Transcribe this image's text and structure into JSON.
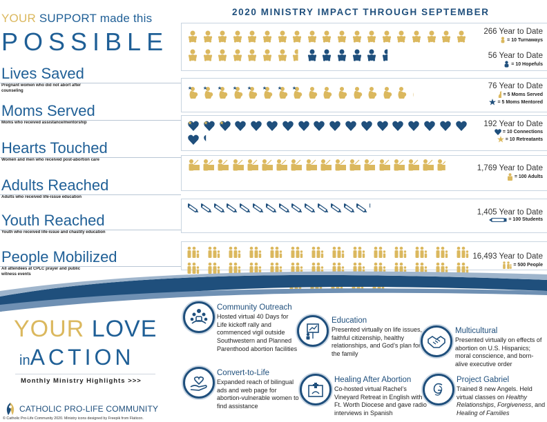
{
  "header": {
    "line1_your": "YOUR",
    "line1_support": "SUPPORT",
    "line1_rest": "made this",
    "line2": "POSSIBLE",
    "chart_title": "2020 MINISTRY IMPACT THROUGH SEPTEMBER"
  },
  "categories": [
    {
      "title": "Lives Saved",
      "desc": "Pregnant women who did not abort after counseling"
    },
    {
      "title": "Moms Served",
      "desc": "Moms who received assistance/mentorship"
    },
    {
      "title": "Hearts Touched",
      "desc": "Women and men who received post-abortion care"
    },
    {
      "title": "Adults Reached",
      "desc": "Adults who received life-issue education"
    },
    {
      "title": "Youth Reached",
      "desc": "Youth who received life-issue and chastity education"
    },
    {
      "title": "People Mobilized",
      "desc": "All attendees at CPLC prayer and public witness events"
    }
  ],
  "stats": {
    "lives_turnaways": {
      "big": "266 Year to Date",
      "legend": "= 10 Turnaways",
      "count": 266,
      "unit": 10,
      "color": "#dbb85e"
    },
    "lives_hopefuls": {
      "big": "56 Year to Date",
      "legend": "= 10 Hopefuls",
      "count": 56,
      "unit": 10,
      "color": "#1f4f7c"
    },
    "moms": {
      "big": "76 Year to Date",
      "legend1": "= 5 Moms Served",
      "legend2": "= 5 Moms Mentored",
      "count": 76,
      "unit": 5
    },
    "hearts": {
      "big": "192 Year to Date",
      "legend1": "= 10 Connections",
      "legend2": "= 10 Retreatants",
      "count": 192,
      "unit": 10
    },
    "adults": {
      "big": "1,769 Year to Date",
      "legend": "= 100 Adults",
      "count": 1769,
      "unit": 100
    },
    "youth": {
      "big": "1,405 Year to Date",
      "legend": "= 100 Students",
      "count": 1405,
      "unit": 100
    },
    "people": {
      "big": "16,493 Year to Date",
      "legend": "= 500 People",
      "count": 16493,
      "unit": 500
    }
  },
  "colors": {
    "gold": "#dbb85e",
    "navy": "#1f4f7c",
    "blue": "#1f5f96"
  },
  "bottom": {
    "your": "YOUR",
    "love": "LOVE",
    "in": "in",
    "action": "ACTION",
    "monthly": "Monthly Ministry Highlights >>>",
    "org": "CATHOLIC PRO-LIFE COMMUNITY",
    "copyright": "© Catholic Pro-Life Community 2020. Ministry icons designed by Freepik from Flaticon."
  },
  "highlights": {
    "outreach": {
      "title": "Community Outreach",
      "icon": "people-gathering-icon",
      "body": "Hosted virtual 40 Days for Life kickoff rally and commenced vigil outside Southwestern and Planned Parenthood abortion facilities"
    },
    "education": {
      "title": "Education",
      "icon": "presentation-icon",
      "body": "Presented virtually on life issues, faithful citizenship, healthy relationships, and God’s plan for the family"
    },
    "multicultural": {
      "title": "Multicultural",
      "icon": "handshake-icon",
      "body": "Presented virtually on effects of abortion on U.S. Hispanics; moral conscience, and born-alive executive order"
    },
    "convert": {
      "title": "Convert-to-Life",
      "icon": "heart-hand-icon",
      "body": "Expanded reach of bilingual ads and web page for abortion-vulnerable women to find assistance"
    },
    "healing": {
      "title": "Healing After Abortion",
      "icon": "healing-icon",
      "body": "Co-hosted virtual Rachel’s Vineyard Retreat in English with Ft. Worth Diocese and gave radio interviews in Spanish"
    },
    "gabriel": {
      "title": "Project Gabriel",
      "icon": "monogram-icon",
      "body_prefix": "Trained 8 new Angels. Held virtual classes on ",
      "body_i1": "Healthy Relationships",
      "body_mid": ", ",
      "body_i2": "Forgiveness",
      "body_mid2": ", and ",
      "body_i3": "Healing of Families"
    }
  }
}
